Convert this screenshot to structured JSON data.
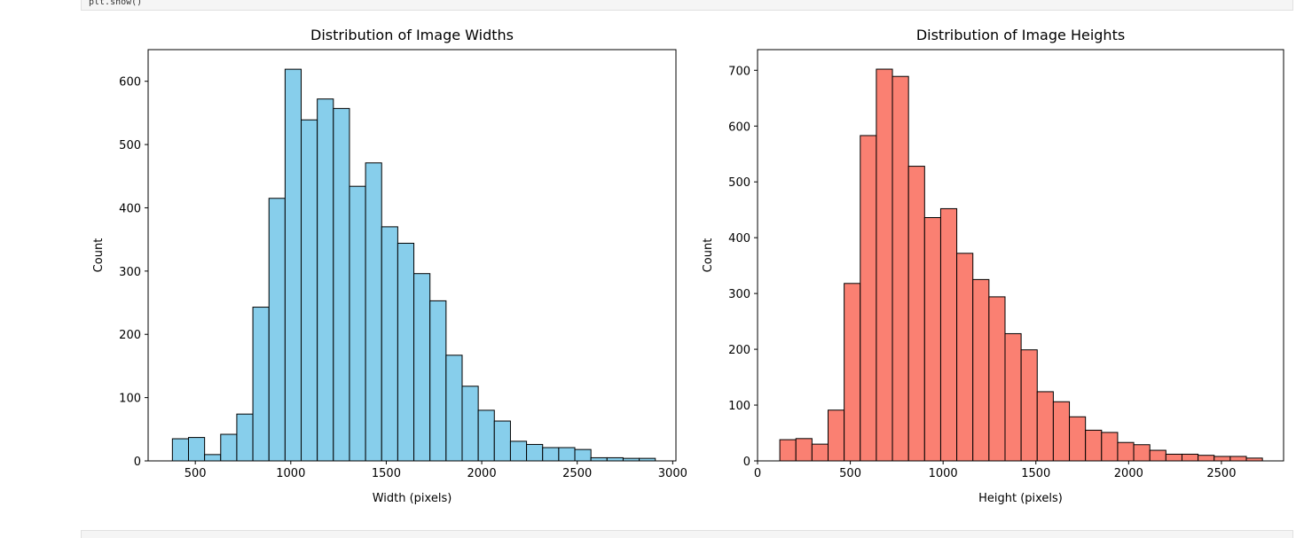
{
  "notebook": {
    "code_cell_top_text": "plt.show()"
  },
  "chart_data": [
    {
      "type": "bar",
      "subtype": "histogram",
      "title": "Distribution of Image Widths",
      "xlabel": "Width (pixels)",
      "ylabel": "Count",
      "xlim": [
        253,
        3017
      ],
      "ylim": [
        0,
        650
      ],
      "xticks": [
        500,
        1000,
        1500,
        2000,
        2500,
        3000
      ],
      "yticks": [
        0,
        100,
        200,
        300,
        400,
        500,
        600
      ],
      "bar_color": "#87ceeb",
      "edge_color": "#000000",
      "grid": false,
      "bin_start": 380,
      "bin_width": 84.3,
      "values": [
        35,
        37,
        10,
        42,
        74,
        243,
        415,
        619,
        539,
        572,
        557,
        434,
        471,
        370,
        344,
        296,
        253,
        167,
        118,
        80,
        63,
        31,
        26,
        21,
        21,
        18,
        5,
        5,
        4,
        4
      ]
    },
    {
      "type": "bar",
      "subtype": "histogram",
      "title": "Distribution of Image Heights",
      "xlabel": "Height (pixels)",
      "ylabel": "Count",
      "xlim": [
        0,
        2835
      ],
      "ylim": [
        0,
        737
      ],
      "xticks": [
        0,
        500,
        1000,
        1500,
        2000,
        2500
      ],
      "yticks": [
        0,
        100,
        200,
        300,
        400,
        500,
        600,
        700
      ],
      "bar_color": "#fa8072",
      "edge_color": "#000000",
      "grid": false,
      "bin_start": 120,
      "bin_width": 86.7,
      "values": [
        38,
        40,
        30,
        91,
        318,
        583,
        702,
        689,
        528,
        436,
        452,
        372,
        325,
        294,
        228,
        199,
        124,
        106,
        79,
        55,
        51,
        33,
        29,
        19,
        12,
        12,
        10,
        8,
        8,
        5
      ]
    }
  ]
}
